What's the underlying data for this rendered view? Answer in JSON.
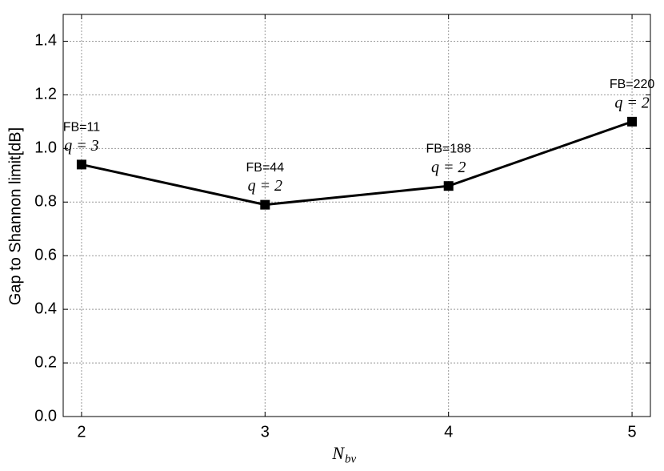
{
  "chart_data": {
    "type": "line",
    "ylabel": "Gap to Shannon limit[dB]",
    "xlabel": "N",
    "xlabel_sub": "bv",
    "x": [
      2,
      3,
      4,
      5
    ],
    "series": [
      {
        "color": "#000000",
        "values": [
          0.94,
          0.79,
          0.86,
          1.1
        ]
      }
    ],
    "annotations": [
      {
        "fb": "FB=11",
        "q": "q = 3"
      },
      {
        "fb": "FB=44",
        "q": "q = 2"
      },
      {
        "fb": "FB=188",
        "q": "q = 2"
      },
      {
        "fb": "FB=220",
        "q": "q = 2"
      }
    ],
    "xlim": [
      1.9,
      5.1
    ],
    "xticks": [
      2,
      3,
      4,
      5
    ],
    "ylim": [
      0,
      1.5
    ],
    "yticks": [
      {
        "value": 0,
        "label": "0.0"
      },
      0.2,
      0.4,
      0.6,
      0.8,
      {
        "value": 1,
        "label": "1.0"
      },
      1.2,
      1.4
    ],
    "grid": true
  }
}
